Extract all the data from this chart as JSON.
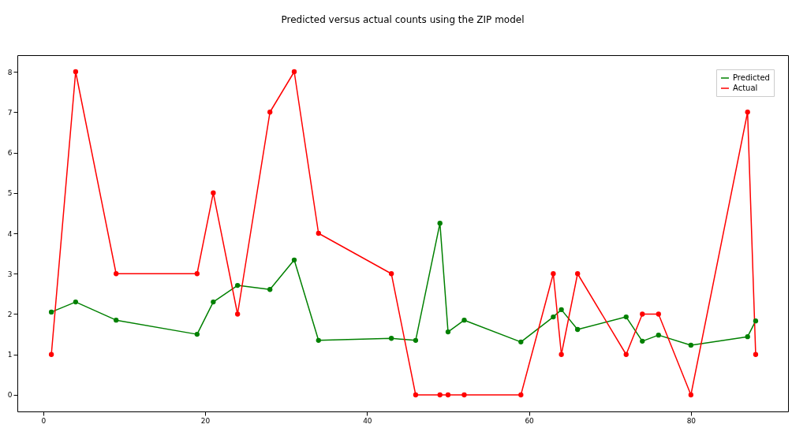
{
  "chart_data": {
    "type": "line",
    "title": "Predicted versus actual counts using the ZIP model",
    "x": [
      1,
      4,
      9,
      19,
      21,
      24,
      28,
      31,
      34,
      43,
      46,
      49,
      50,
      52,
      59,
      63,
      64,
      66,
      72,
      74,
      76,
      80,
      87,
      88
    ],
    "series": [
      {
        "name": "Predicted",
        "color": "#008000",
        "values": [
          2.05,
          2.3,
          1.85,
          1.5,
          2.3,
          2.71,
          2.61,
          3.34,
          1.35,
          1.4,
          1.35,
          4.25,
          1.56,
          1.85,
          1.31,
          1.93,
          2.11,
          1.62,
          1.93,
          1.33,
          1.48,
          1.23,
          1.44,
          1.83
        ]
      },
      {
        "name": "Actual",
        "color": "#ff0000",
        "values": [
          1,
          8,
          3,
          3,
          5,
          2,
          7,
          8,
          4,
          3,
          0,
          0,
          0,
          0,
          0,
          3,
          1,
          3,
          1,
          2,
          2,
          0,
          7,
          1
        ]
      }
    ],
    "xlim": [
      -3.2,
      92
    ],
    "ylim": [
      -0.41,
      8.41
    ],
    "xticks": [
      0,
      20,
      40,
      60,
      80
    ],
    "yticks": [
      0,
      1,
      2,
      3,
      4,
      5,
      6,
      7,
      8
    ],
    "marker": "circle",
    "legend": "top right",
    "grid": false
  }
}
